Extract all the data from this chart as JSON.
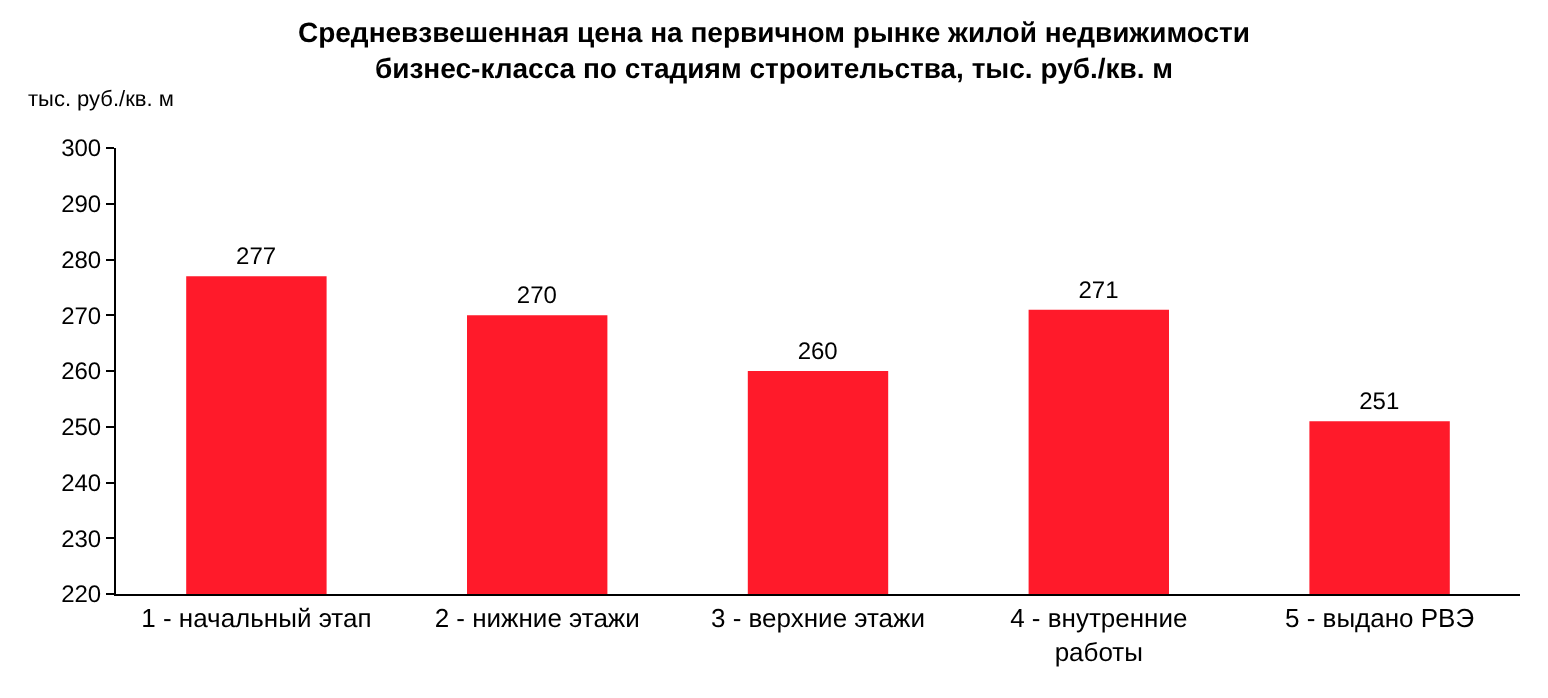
{
  "chart_data": {
    "type": "bar",
    "title": "Средневзвешенная цена на первичном рынке жилой недвижимости бизнес-класса по стадиям строительства, тыс. руб./кв. м",
    "ylabel": "тыс. руб./кв. м",
    "categories": [
      "1 - начальный этап",
      "2 - нижние этажи",
      "3 - верхние этажи",
      "4 - внутренние работы",
      "5 - выдано РВЭ"
    ],
    "values": [
      277,
      270,
      260,
      271,
      251
    ],
    "color": "#ff1a2a",
    "ylim": [
      220,
      300
    ],
    "yticks": [
      220,
      230,
      240,
      250,
      260,
      270,
      280,
      290,
      300
    ],
    "data_labels": true
  }
}
